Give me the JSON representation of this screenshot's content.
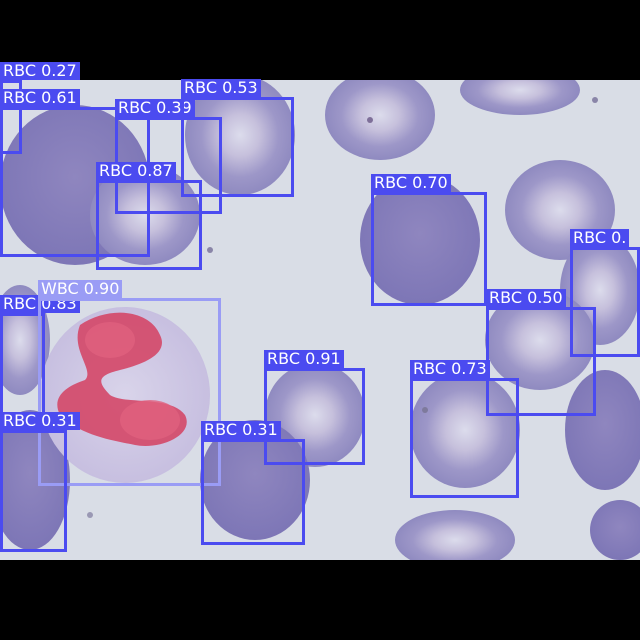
{
  "colors": {
    "letterbox": "#000000",
    "rbc_box": "#4b4bf0",
    "wbc_box": "#9a9cf5",
    "label_text": "#ffffff"
  },
  "detections": [
    {
      "label": "RBC 0.27",
      "class": "rbc"
    },
    {
      "label": "RBC 0.61",
      "class": "rbc"
    },
    {
      "label": "RBC 0.39",
      "class": "rbc"
    },
    {
      "label": "RBC 0.53",
      "class": "rbc"
    },
    {
      "label": "RBC 0.87",
      "class": "rbc"
    },
    {
      "label": "RBC 0.70",
      "class": "rbc"
    },
    {
      "label": "RBC 0.",
      "class": "rbc"
    },
    {
      "label": "RBC 0.50",
      "class": "rbc"
    },
    {
      "label": "RBC 0.83",
      "class": "rbc"
    },
    {
      "label": "WBC 0.90",
      "class": "wbc"
    },
    {
      "label": "RBC 0.91",
      "class": "rbc"
    },
    {
      "label": "RBC 0.73",
      "class": "rbc"
    },
    {
      "label": "RBC 0.31",
      "class": "rbc"
    },
    {
      "label": "RBC 0.31",
      "class": "rbc"
    }
  ]
}
